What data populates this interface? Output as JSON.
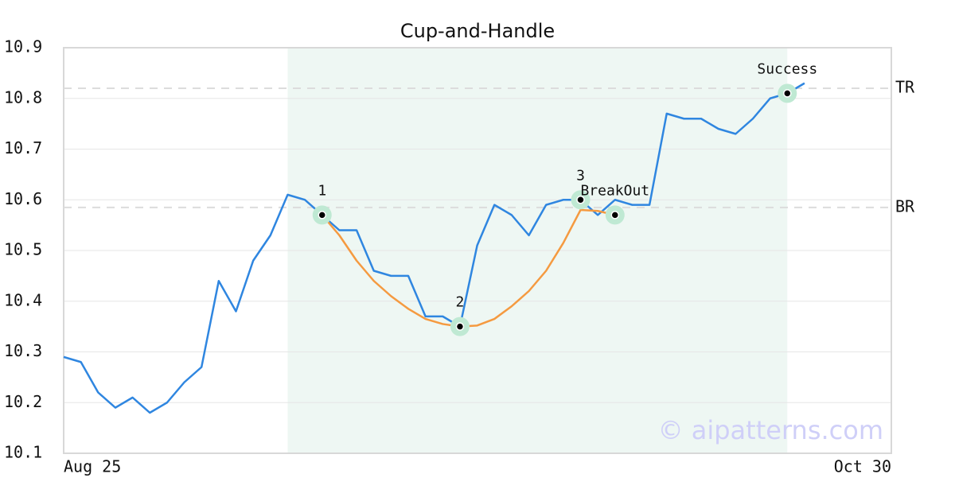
{
  "chart_data": {
    "type": "line",
    "title": "Cup-and-Handle",
    "categories": [
      "Aug 25",
      null,
      null,
      null,
      null,
      null,
      null,
      null,
      null,
      null,
      null,
      null,
      null,
      null,
      null,
      null,
      null,
      null,
      null,
      null,
      null,
      null,
      null,
      null,
      null,
      null,
      null,
      null,
      null,
      null,
      null,
      null,
      null,
      null,
      null,
      null,
      null,
      null,
      null,
      null,
      null,
      null,
      null,
      "Oct 30"
    ],
    "series": [
      {
        "color": "#2f86e0",
        "values": [
          10.29,
          10.28,
          10.22,
          10.19,
          10.21,
          10.18,
          10.2,
          10.24,
          10.27,
          10.44,
          10.38,
          10.48,
          10.53,
          10.61,
          10.6,
          10.57,
          10.54,
          10.54,
          10.46,
          10.45,
          10.45,
          10.37,
          10.37,
          10.35,
          10.51,
          10.59,
          10.57,
          10.53,
          10.59,
          10.6,
          10.6,
          10.57,
          10.6,
          10.59,
          10.59,
          10.77,
          10.76,
          10.76,
          10.74,
          10.73,
          10.76,
          10.8,
          10.81,
          10.83
        ]
      },
      {
        "color": "#f59a40",
        "values": [
          null,
          null,
          null,
          null,
          null,
          null,
          null,
          null,
          null,
          null,
          null,
          null,
          null,
          null,
          null,
          10.57,
          10.53,
          10.48,
          10.44,
          10.41,
          10.385,
          10.365,
          10.355,
          10.35,
          10.352,
          10.365,
          10.39,
          10.42,
          10.46,
          10.515,
          10.58,
          10.578,
          10.57,
          null,
          null,
          null,
          null,
          null,
          null,
          null,
          null,
          null,
          null,
          null
        ]
      }
    ],
    "points": [
      {
        "label": "1",
        "index": 15,
        "value": 10.57
      },
      {
        "label": "2",
        "index": 23,
        "value": 10.35
      },
      {
        "label": "3",
        "index": 30,
        "value": 10.6
      },
      {
        "label": "BreakOut",
        "index": 32,
        "value": 10.57
      },
      {
        "label": "Success",
        "index": 42,
        "value": 10.81
      }
    ],
    "levels": [
      {
        "label": "TR",
        "value": 10.82
      },
      {
        "label": "BR",
        "value": 10.585
      }
    ],
    "shaded_range": [
      13,
      42
    ],
    "shade_color": "#eef7f3",
    "ylim": [
      10.1,
      10.9
    ],
    "yticks": [
      10.1,
      10.2,
      10.3,
      10.4,
      10.5,
      10.6,
      10.7,
      10.8,
      10.9
    ],
    "grid": true,
    "watermark": "© aipatterns.com"
  }
}
